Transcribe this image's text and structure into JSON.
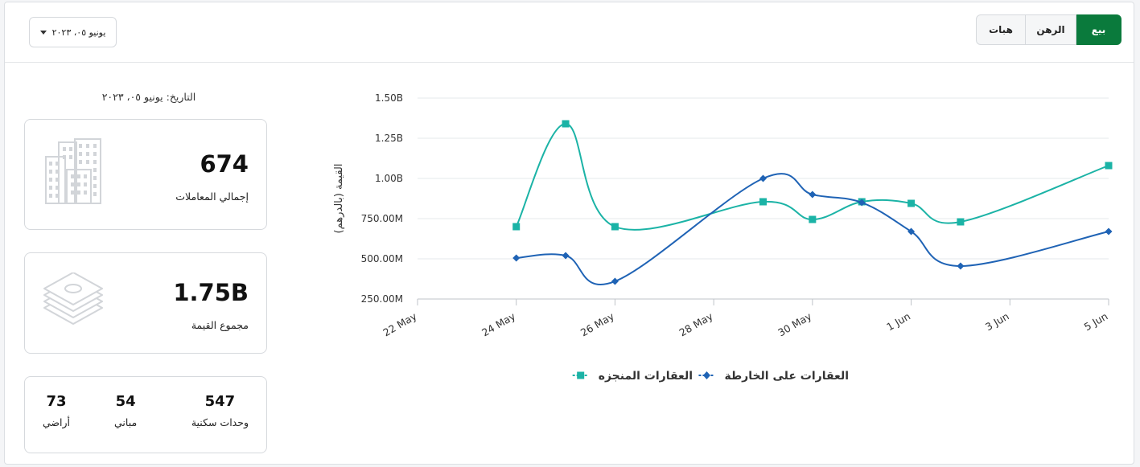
{
  "header": {
    "date_select_value": "يونيو ٠٥، ٢٠٢٣",
    "tabs": [
      {
        "label": "بيع",
        "active": true
      },
      {
        "label": "الرهن",
        "active": false
      },
      {
        "label": "هبات",
        "active": false
      }
    ]
  },
  "stats": {
    "date_label": "التاريخ: يونيو ٠٥، ٢٠٢٣",
    "total_transactions": {
      "value": "674",
      "label": "إجمالي المعاملات",
      "icon": "buildings-icon"
    },
    "total_value": {
      "value": "1.75B",
      "label": "مجموع القيمة",
      "icon": "money-stack-icon"
    },
    "breakdown": [
      {
        "value": "547",
        "label": "وحدات سكنية"
      },
      {
        "value": "54",
        "label": "مباني"
      },
      {
        "value": "73",
        "label": "أراضي"
      }
    ]
  },
  "colors": {
    "accent": "#0a7a3c",
    "series_done": "#1bb3a6",
    "series_map": "#1f63b5"
  },
  "chart_data": {
    "type": "line",
    "ylabel": "القيمة (بالدرهم)",
    "xlabel": "",
    "y_ticks": [
      "250.00M",
      "500.00M",
      "750.00M",
      "1.00B",
      "1.25B",
      "1.50B"
    ],
    "y_tick_values": [
      250000000,
      500000000,
      750000000,
      1000000000,
      1250000000,
      1500000000
    ],
    "ylim": [
      250000000,
      1500000000
    ],
    "x_ticks": [
      "22 May",
      "24 May",
      "26 May",
      "28 May",
      "30 May",
      "1 Jun",
      "3 Jun",
      "5 Jun"
    ],
    "x_tick_dates": [
      "2023-05-22",
      "2023-05-24",
      "2023-05-26",
      "2023-05-28",
      "2023-05-30",
      "2023-06-01",
      "2023-06-03",
      "2023-06-05"
    ],
    "grid": true,
    "legend_position": "bottom",
    "series": [
      {
        "name": "العقارات المنجزه",
        "marker": "square",
        "x": [
          "2023-05-24",
          "2023-05-25",
          "2023-05-26",
          "2023-05-29",
          "2023-05-30",
          "2023-05-31",
          "2023-06-01",
          "2023-06-02",
          "2023-06-05"
        ],
        "values": [
          700000000,
          1340000000,
          700000000,
          855000000,
          745000000,
          855000000,
          845000000,
          730000000,
          1080000000
        ]
      },
      {
        "name": "العقارات على الخارطة",
        "marker": "diamond",
        "x": [
          "2023-05-24",
          "2023-05-25",
          "2023-05-26",
          "2023-05-29",
          "2023-05-30",
          "2023-05-31",
          "2023-06-01",
          "2023-06-02",
          "2023-06-05"
        ],
        "values": [
          505000000,
          520000000,
          360000000,
          1000000000,
          900000000,
          850000000,
          670000000,
          455000000,
          670000000
        ]
      }
    ]
  }
}
